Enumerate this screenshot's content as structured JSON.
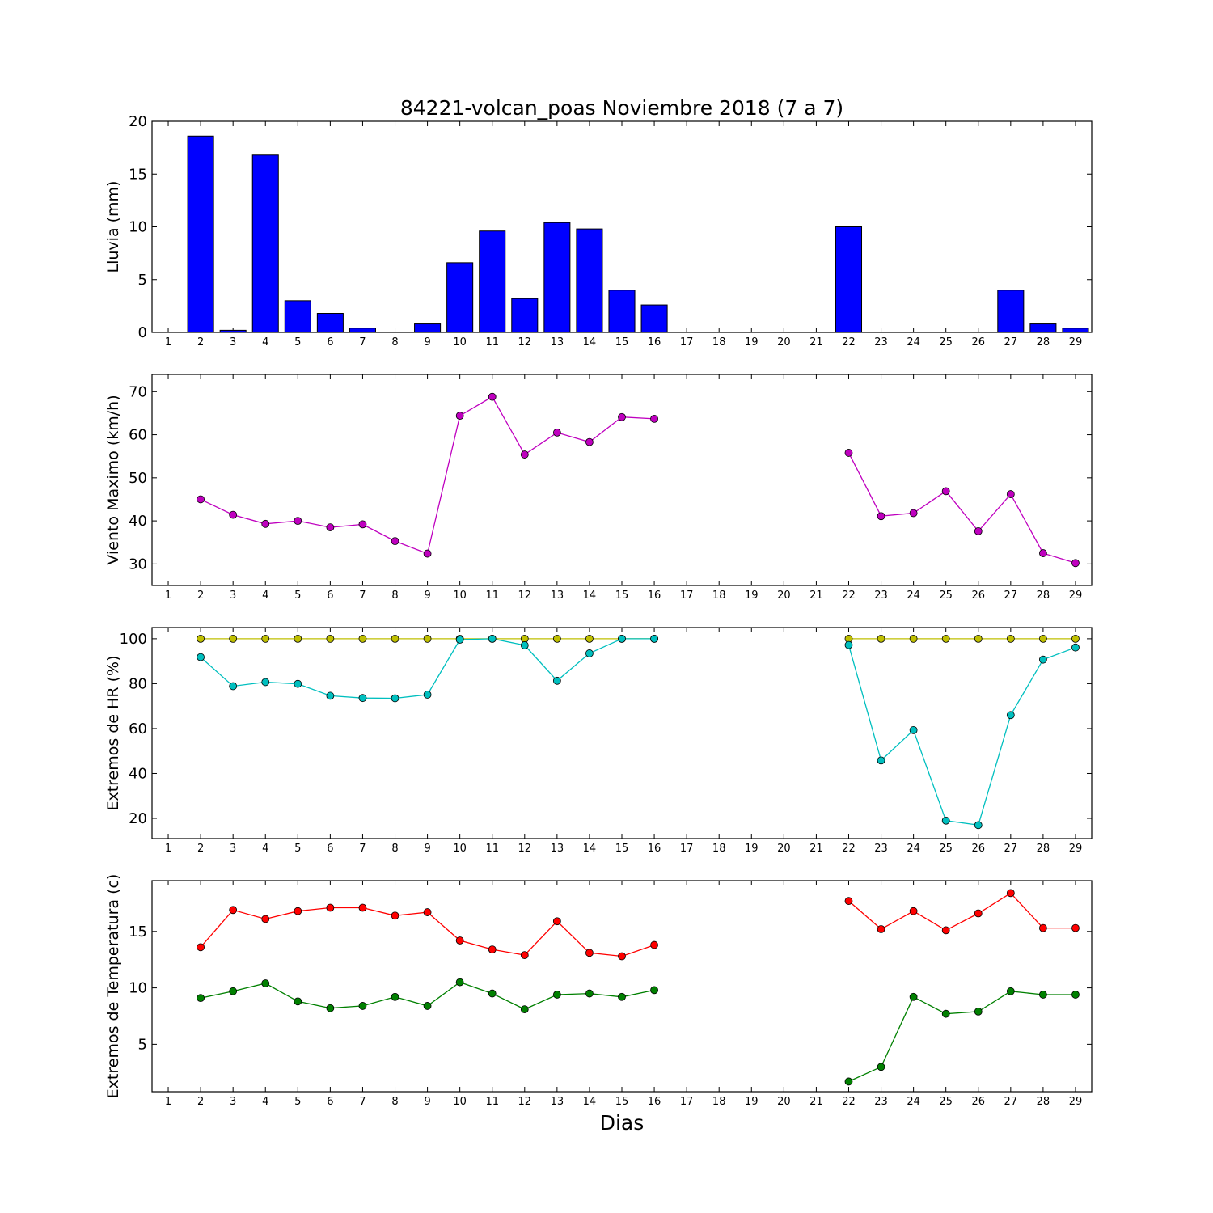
{
  "title": "84221-volcan_poas Noviembre 2018  (7 a 7)",
  "xlabel": "Dias",
  "chart_data": [
    {
      "type": "bar",
      "ylabel": "Lluvia (mm)",
      "ylim": [
        0,
        20
      ],
      "yticks": [
        0,
        5,
        10,
        15,
        20
      ],
      "x": [
        1,
        2,
        3,
        4,
        5,
        6,
        7,
        8,
        9,
        10,
        11,
        12,
        13,
        14,
        15,
        16,
        17,
        18,
        19,
        20,
        21,
        22,
        23,
        24,
        25,
        26,
        27,
        28,
        29
      ],
      "series": [
        {
          "color": "#0000ff",
          "values": [
            0,
            18.6,
            0.2,
            16.8,
            3.0,
            1.8,
            0.4,
            0,
            0.8,
            6.6,
            9.6,
            3.2,
            10.4,
            9.8,
            4.0,
            2.6,
            0,
            0,
            0,
            0,
            0,
            10.0,
            0,
            0,
            0,
            0,
            4.0,
            0.8,
            0.4
          ]
        }
      ]
    },
    {
      "type": "line",
      "ylabel": "Viento Maximo (km/h)",
      "ylim": [
        25,
        74
      ],
      "yticks": [
        30,
        40,
        50,
        60,
        70
      ],
      "x": [
        1,
        2,
        3,
        4,
        5,
        6,
        7,
        8,
        9,
        10,
        11,
        12,
        13,
        14,
        15,
        16,
        17,
        18,
        19,
        20,
        21,
        22,
        23,
        24,
        25,
        26,
        27,
        28,
        29
      ],
      "series": [
        {
          "color": "#bf00bf",
          "values": [
            null,
            45.0,
            41.4,
            39.3,
            40.0,
            38.5,
            39.2,
            35.3,
            32.4,
            64.4,
            68.8,
            55.4,
            60.5,
            58.3,
            64.1,
            63.7,
            null,
            null,
            null,
            null,
            null,
            55.8,
            41.1,
            41.8,
            46.9,
            37.6,
            46.2,
            32.5,
            30.2
          ]
        }
      ]
    },
    {
      "type": "line",
      "ylabel": "Extremos de HR (%)",
      "ylim": [
        11,
        105
      ],
      "yticks": [
        20,
        40,
        60,
        80,
        100
      ],
      "x": [
        1,
        2,
        3,
        4,
        5,
        6,
        7,
        8,
        9,
        10,
        11,
        12,
        13,
        14,
        15,
        16,
        17,
        18,
        19,
        20,
        21,
        22,
        23,
        24,
        25,
        26,
        27,
        28,
        29
      ],
      "series": [
        {
          "color": "#bfbf00",
          "values": [
            null,
            100,
            100,
            100,
            100,
            100,
            100,
            100,
            100,
            100,
            100,
            100,
            100,
            100,
            100,
            100,
            null,
            null,
            null,
            null,
            null,
            100,
            100,
            100,
            100,
            100,
            100,
            100,
            100
          ]
        },
        {
          "color": "#00bfbf",
          "values": [
            null,
            91.8,
            78.9,
            80.7,
            79.9,
            74.6,
            73.6,
            73.5,
            75.1,
            99.6,
            100,
            97.1,
            81.3,
            93.5,
            100,
            100,
            null,
            null,
            null,
            null,
            null,
            97.2,
            45.8,
            59.3,
            19.0,
            17.0,
            66.0,
            90.7,
            96.1
          ]
        }
      ]
    },
    {
      "type": "line",
      "ylabel": "Extremos de Temperatura (c)",
      "ylim": [
        0.8,
        19.5
      ],
      "yticks": [
        5,
        10,
        15
      ],
      "x": [
        1,
        2,
        3,
        4,
        5,
        6,
        7,
        8,
        9,
        10,
        11,
        12,
        13,
        14,
        15,
        16,
        17,
        18,
        19,
        20,
        21,
        22,
        23,
        24,
        25,
        26,
        27,
        28,
        29
      ],
      "series": [
        {
          "color": "#ff0000",
          "values": [
            null,
            13.6,
            16.9,
            16.1,
            16.8,
            17.1,
            17.1,
            16.4,
            16.7,
            14.2,
            13.4,
            12.9,
            15.9,
            13.1,
            12.8,
            13.8,
            null,
            null,
            null,
            null,
            null,
            17.7,
            15.2,
            16.8,
            15.1,
            16.6,
            18.4,
            15.3,
            15.3
          ]
        },
        {
          "color": "#008000",
          "values": [
            null,
            9.1,
            9.7,
            10.4,
            8.8,
            8.2,
            8.4,
            9.2,
            8.4,
            10.5,
            9.5,
            8.1,
            9.4,
            9.5,
            9.2,
            9.8,
            null,
            null,
            null,
            null,
            null,
            1.7,
            3.0,
            9.2,
            7.7,
            7.9,
            9.7,
            9.4,
            9.4
          ]
        }
      ]
    }
  ]
}
